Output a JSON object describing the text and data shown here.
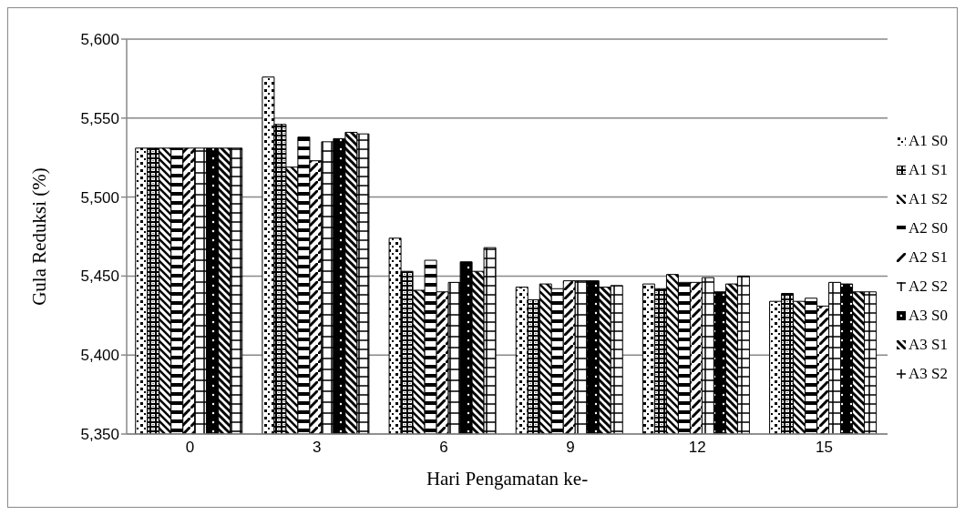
{
  "chart_data": {
    "type": "bar",
    "xlabel": "Hari Pengamatan ke-",
    "ylabel": "Gula Reduksi (%)",
    "categories": [
      "0",
      "3",
      "6",
      "9",
      "12",
      "15"
    ],
    "series": [
      {
        "name": "A1 S0",
        "color": "#000000",
        "values": [
          5531,
          5576,
          5474,
          5443,
          5445,
          5434
        ]
      },
      {
        "name": "A1 S1",
        "color": "#000000",
        "values": [
          5531,
          5546,
          5453,
          5435,
          5442,
          5439
        ]
      },
      {
        "name": "A1 S2",
        "color": "#000000",
        "values": [
          5531,
          5519,
          5441,
          5445,
          5451,
          5434
        ]
      },
      {
        "name": "A2 S0",
        "color": "#000000",
        "values": [
          5531,
          5538,
          5460,
          5442,
          5446,
          5436
        ]
      },
      {
        "name": "A2 S1",
        "color": "#000000",
        "values": [
          5531,
          5523,
          5440,
          5447,
          5446,
          5431
        ]
      },
      {
        "name": "A2 S2",
        "color": "#000000",
        "values": [
          5531,
          5535,
          5446,
          5447,
          5449,
          5446
        ]
      },
      {
        "name": "A3 S0",
        "color": "#000000",
        "values": [
          5531,
          5537,
          5459,
          5447,
          5440,
          5445
        ]
      },
      {
        "name": "A3 S1",
        "color": "#000000",
        "values": [
          5531,
          5541,
          5453,
          5443,
          5445,
          5440
        ]
      },
      {
        "name": "A3 S2",
        "color": "#000000",
        "values": [
          5531,
          5540,
          5468,
          5444,
          5450,
          5440
        ]
      }
    ],
    "ylim": [
      5350,
      5600
    ],
    "yticks": [
      {
        "value": 5350,
        "label": "5,350"
      },
      {
        "value": 5400,
        "label": "5,400"
      },
      {
        "value": 5450,
        "label": "5,450"
      },
      {
        "value": 5500,
        "label": "5,500"
      },
      {
        "value": 5550,
        "label": "5,550"
      },
      {
        "value": 5600,
        "label": "5,600"
      }
    ],
    "grid": "y",
    "legend": "right"
  }
}
